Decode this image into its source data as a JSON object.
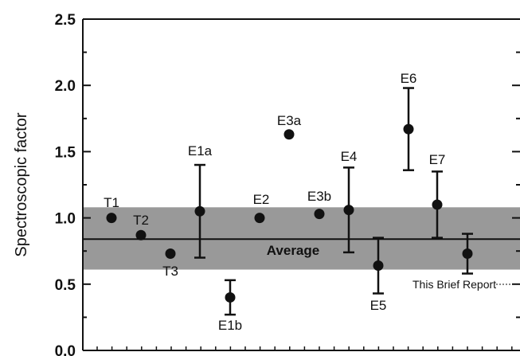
{
  "chart_data": {
    "type": "scatter",
    "title": "",
    "ylabel": "Spectroscopic factor",
    "xlabel": "",
    "ylim": [
      0.0,
      2.5
    ],
    "y_ticks": [
      "0.0",
      "0.5",
      "1.0",
      "1.5",
      "2.0",
      "2.5"
    ],
    "band": {
      "label": "Average",
      "value": 0.84,
      "low": 0.61,
      "high": 1.08,
      "color": "#999999"
    },
    "points": [
      {
        "label": "T1",
        "value": 1.0,
        "err_low": null,
        "err_high": null
      },
      {
        "label": "T2",
        "value": 0.87,
        "err_low": null,
        "err_high": null
      },
      {
        "label": "T3",
        "value": 0.73,
        "err_low": null,
        "err_high": null
      },
      {
        "label": "E1a",
        "value": 1.05,
        "err_low": 0.7,
        "err_high": 1.4
      },
      {
        "label": "E1b",
        "value": 0.4,
        "err_low": 0.27,
        "err_high": 0.53
      },
      {
        "label": "E2",
        "value": 1.0,
        "err_low": null,
        "err_high": null
      },
      {
        "label": "E3a",
        "value": 1.63,
        "err_low": null,
        "err_high": null
      },
      {
        "label": "E3b",
        "value": 1.03,
        "err_low": null,
        "err_high": null
      },
      {
        "label": "E4",
        "value": 1.06,
        "err_low": 0.74,
        "err_high": 1.38
      },
      {
        "label": "E5",
        "value": 0.64,
        "err_low": 0.43,
        "err_high": 0.85
      },
      {
        "label": "E6",
        "value": 1.67,
        "err_low": 1.36,
        "err_high": 1.98
      },
      {
        "label": "E7",
        "value": 1.1,
        "err_low": 0.85,
        "err_high": 1.35
      },
      {
        "label": "This Brief Report",
        "value": 0.73,
        "err_low": 0.58,
        "err_high": 0.88
      }
    ]
  }
}
